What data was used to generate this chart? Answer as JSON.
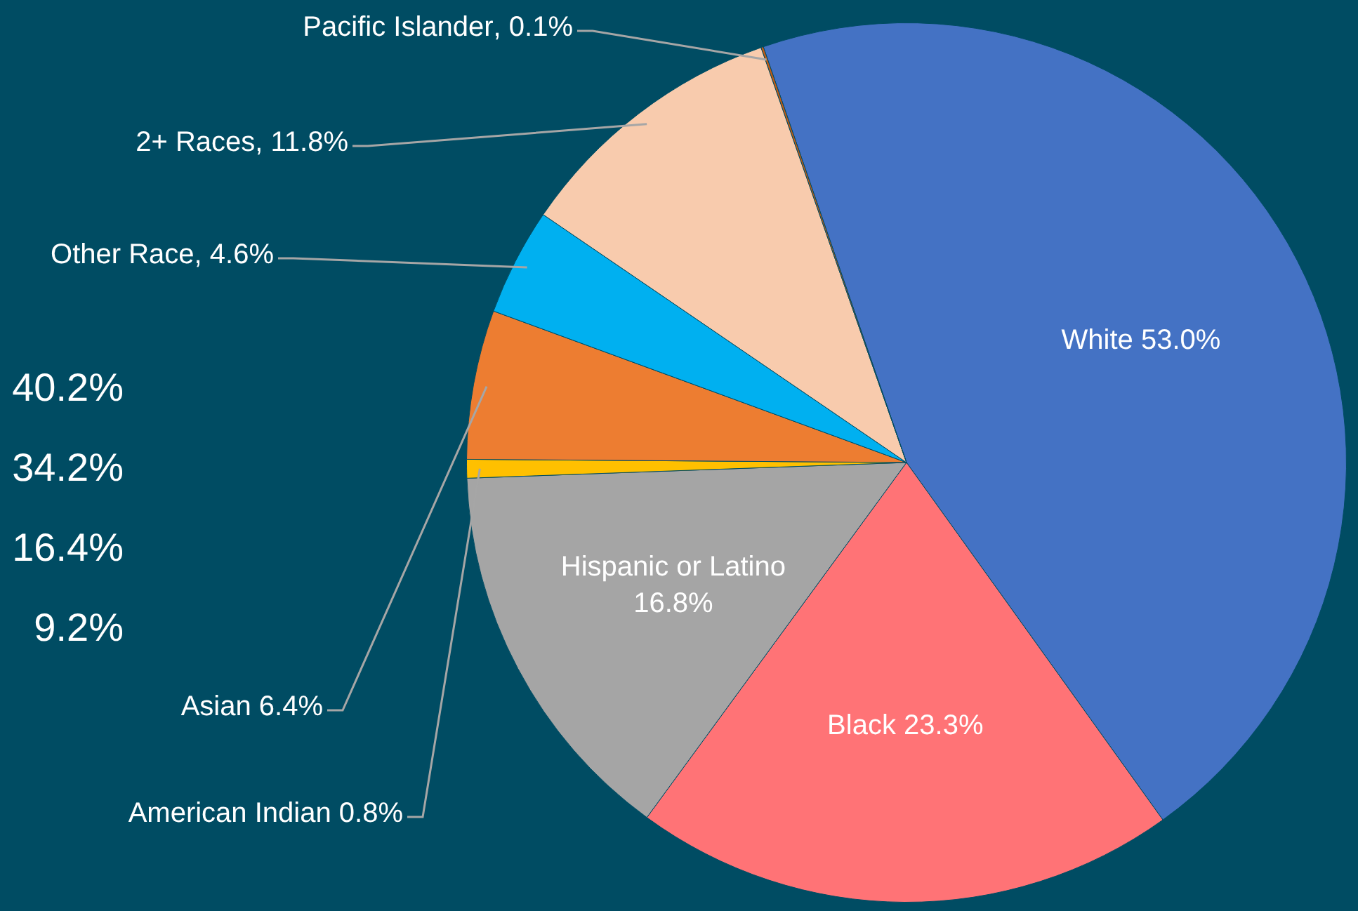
{
  "chart_data": {
    "type": "pie",
    "categories": [
      "White",
      "Black",
      "Hispanic or Latino",
      "American Indian",
      "Asian",
      "Other Race",
      "2+ Races",
      "Pacific Islander"
    ],
    "values": [
      53.0,
      23.3,
      16.8,
      0.8,
      6.4,
      4.6,
      11.8,
      0.1
    ],
    "colors": [
      "#4472c4",
      "#ff7376",
      "#a5a5a5",
      "#ffc000",
      "#ed7d31",
      "#00b0f0",
      "#f8cbad",
      "#c55a11"
    ],
    "value_labels": [
      "53.0%",
      "23.3%",
      "16.8%",
      "0.8%",
      "6.4%",
      ", 4.6%",
      ", 11.8%",
      ", 0.1%"
    ],
    "annotations": [
      "40.2%",
      "34.2%",
      "16.4%",
      "9.2%"
    ],
    "legend": false
  }
}
